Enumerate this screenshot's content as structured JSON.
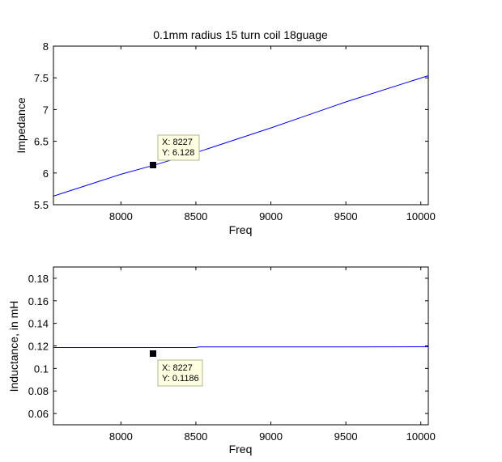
{
  "chart_data": [
    {
      "type": "line",
      "title": "0.1mm radius 15 turn coil 18guage",
      "xlabel": "Freq",
      "ylabel": "Impedance",
      "xlim": [
        7550,
        10050
      ],
      "ylim": [
        5.5,
        8
      ],
      "xticks": [
        "8000",
        "8500",
        "9000",
        "9500",
        "10000"
      ],
      "yticks": [
        "5.5",
        "6",
        "6.5",
        "7",
        "7.5",
        "8"
      ],
      "grid": false,
      "series": [
        {
          "color": "#0000ff",
          "x": [
            7550,
            8000,
            8227,
            8500,
            9000,
            9500,
            10050
          ],
          "y": [
            5.635,
            5.98,
            6.128,
            6.32,
            6.71,
            7.12,
            7.535
          ]
        }
      ],
      "datatip": {
        "x": 8227,
        "y": 6.128,
        "x_text": "X: 8227",
        "y_text": "Y: 6.128"
      }
    },
    {
      "type": "line",
      "title": "",
      "xlabel": "Freq",
      "ylabel": "Inductance, in mH",
      "xlim": [
        7550,
        10050
      ],
      "ylim": [
        0.05,
        0.19
      ],
      "xticks": [
        "8000",
        "8500",
        "9000",
        "9500",
        "10000"
      ],
      "yticks": [
        "0.06",
        "0.08",
        "0.1",
        "0.12",
        "0.14",
        "0.16",
        "0.18"
      ],
      "grid": false,
      "series": [
        {
          "color": "#0000ff",
          "x": [
            7550,
            8000,
            8227,
            8500,
            8520,
            9000,
            9500,
            10050
          ],
          "y": [
            0.1186,
            0.1186,
            0.1186,
            0.1186,
            0.1191,
            0.1191,
            0.1191,
            0.1192
          ]
        }
      ],
      "datatip": {
        "x": 8227,
        "y": 0.1186,
        "x_text": "X: 8227",
        "y_text": "Y: 0.1186"
      }
    }
  ]
}
